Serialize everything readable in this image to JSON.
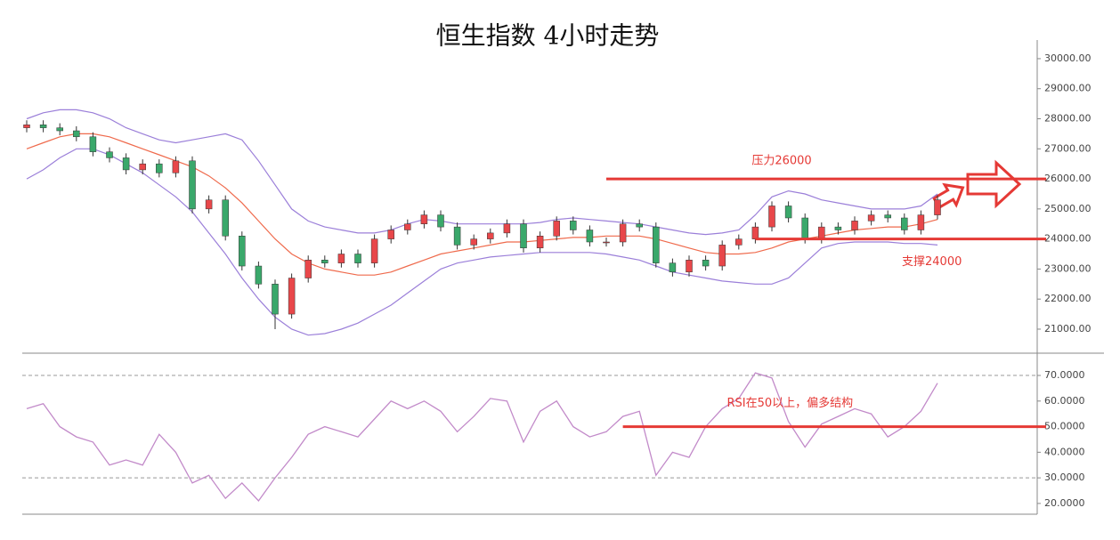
{
  "chart_data": [
    {
      "type": "candlestick",
      "title": "恒生指数 4小时走势",
      "up_color": "#e8474a",
      "down_color": "#3aa86b",
      "open": [
        27700,
        27800,
        27700,
        27600,
        27400,
        26900,
        26700,
        26300,
        26500,
        26200,
        26600,
        25000,
        25300,
        24100,
        23100,
        22500,
        21500,
        22700,
        23300,
        23200,
        23500,
        23200,
        24000,
        24300,
        24500,
        24800,
        24400,
        23800,
        24000,
        24200,
        24500,
        23700,
        24100,
        24600,
        24300,
        23900,
        23900,
        24500,
        24400,
        23200,
        22900,
        23300,
        23100,
        23800,
        24000,
        24400,
        25100,
        24700,
        24000,
        24400,
        24300,
        24600,
        24800,
        24700,
        24300,
        24800
      ],
      "high": [
        27950,
        27950,
        27850,
        27750,
        27550,
        27050,
        26850,
        26650,
        26650,
        26750,
        26750,
        25450,
        25450,
        24250,
        23250,
        22650,
        22850,
        23450,
        23450,
        23650,
        23650,
        24150,
        24450,
        24650,
        24950,
        24950,
        24550,
        24150,
        24350,
        24650,
        24650,
        24250,
        24750,
        24750,
        24450,
        24050,
        24650,
        24650,
        24550,
        23350,
        23450,
        23450,
        23950,
        24150,
        24550,
        25250,
        25250,
        24850,
        24550,
        24550,
        24750,
        24950,
        24950,
        24850,
        24950,
        25450
      ],
      "low": [
        27550,
        27550,
        27450,
        27250,
        26750,
        26550,
        26150,
        26150,
        26050,
        26050,
        24850,
        24850,
        23950,
        22950,
        22350,
        21000,
        21350,
        22550,
        23050,
        23050,
        23050,
        23050,
        23850,
        24150,
        24350,
        24250,
        23650,
        23650,
        23850,
        24050,
        23550,
        23550,
        23950,
        24150,
        23750,
        23750,
        23750,
        24250,
        23050,
        22750,
        22750,
        22950,
        22950,
        23650,
        23850,
        24250,
        24550,
        23850,
        23850,
        24150,
        24150,
        24450,
        24550,
        24150,
        24150,
        24650
      ],
      "close": [
        27800,
        27700,
        27600,
        27400,
        26900,
        26700,
        26300,
        26500,
        26200,
        26600,
        25000,
        25300,
        24100,
        23100,
        22500,
        21500,
        22700,
        23300,
        23200,
        23500,
        23200,
        24000,
        24300,
        24500,
        24800,
        24400,
        23800,
        24000,
        24200,
        24500,
        23700,
        24100,
        24600,
        24300,
        23900,
        23900,
        24500,
        24400,
        23200,
        22900,
        23300,
        23100,
        23800,
        24000,
        24400,
        25100,
        24700,
        24000,
        24400,
        24300,
        24600,
        24800,
        24700,
        24300,
        24800,
        25300
      ],
      "series": [
        {
          "color": "#9b7fd9",
          "values": [
            28000,
            28200,
            28300,
            28300,
            28200,
            28000,
            27700,
            27500,
            27300,
            27200,
            27300,
            27400,
            27500,
            27300,
            26600,
            25800,
            25000,
            24600,
            24400,
            24300,
            24200,
            24200,
            24300,
            24500,
            24650,
            24600,
            24500,
            24500,
            24500,
            24500,
            24500,
            24550,
            24650,
            24700,
            24650,
            24600,
            24550,
            24500,
            24400,
            24300,
            24200,
            24150,
            24200,
            24300,
            24800,
            25400,
            25600,
            25500,
            25300,
            25200,
            25100,
            25000,
            25000,
            25000,
            25100,
            25500
          ]
        },
        {
          "color": "#ef6a4c",
          "values": [
            27000,
            27200,
            27400,
            27500,
            27500,
            27400,
            27200,
            27000,
            26800,
            26600,
            26400,
            26100,
            25700,
            25200,
            24600,
            24000,
            23500,
            23200,
            23000,
            22900,
            22800,
            22800,
            22900,
            23100,
            23300,
            23500,
            23600,
            23700,
            23800,
            23900,
            23900,
            23950,
            24000,
            24050,
            24050,
            24100,
            24100,
            24100,
            24000,
            23850,
            23700,
            23550,
            23500,
            23500,
            23550,
            23700,
            23900,
            24000,
            24100,
            24200,
            24300,
            24350,
            24400,
            24400,
            24500,
            24650
          ]
        },
        {
          "color": "#9b7fd9",
          "values": [
            26000,
            26300,
            26700,
            27000,
            27000,
            26800,
            26500,
            26200,
            25800,
            25400,
            24900,
            24200,
            23500,
            22700,
            22000,
            21400,
            21000,
            20800,
            20850,
            21000,
            21200,
            21500,
            21800,
            22200,
            22600,
            23000,
            23200,
            23300,
            23400,
            23450,
            23500,
            23550,
            23550,
            23550,
            23550,
            23500,
            23400,
            23300,
            23100,
            22900,
            22800,
            22700,
            22600,
            22550,
            22500,
            22500,
            22700,
            23200,
            23700,
            23850,
            23900,
            23900,
            23900,
            23850,
            23850,
            23800
          ]
        }
      ],
      "ylim": [
        20200,
        30620
      ],
      "yticks": [
        {
          "value": 21000,
          "label": "21000.00"
        },
        {
          "value": 22000,
          "label": "22000.00"
        },
        {
          "value": 23000,
          "label": "23000.00"
        },
        {
          "value": 24000,
          "label": "24000.00"
        },
        {
          "value": 25000,
          "label": "25000.00"
        },
        {
          "value": 26000,
          "label": "26000.00"
        },
        {
          "value": 27000,
          "label": "27000.00"
        },
        {
          "value": 28000,
          "label": "28000.00"
        },
        {
          "value": 29000,
          "label": "29000.00"
        },
        {
          "value": 30000,
          "label": "30000.00"
        }
      ],
      "annotations": [
        {
          "text": "压力26000",
          "value": 26000,
          "start": 35,
          "color": "#e53935"
        },
        {
          "text": "支撑24000",
          "value": 24000,
          "start": 44,
          "color": "#e53935"
        }
      ]
    },
    {
      "type": "line",
      "color": "#c28ac9",
      "values": [
        57,
        59,
        50,
        46,
        44,
        35,
        37,
        35,
        47,
        40,
        28,
        31,
        22,
        28,
        21,
        30,
        38,
        47,
        50,
        48,
        46,
        53,
        60,
        57,
        60,
        56,
        48,
        54,
        61,
        60,
        44,
        56,
        60,
        50,
        46,
        48,
        54,
        56,
        31,
        40,
        38,
        50,
        57,
        61,
        71,
        69,
        52,
        42,
        51,
        54,
        57,
        55,
        46,
        50,
        56,
        67
      ],
      "ylim": [
        15.8,
        78.7
      ],
      "yticks": [
        {
          "value": 20,
          "label": "20.0000"
        },
        {
          "value": 30,
          "label": "30.0000"
        },
        {
          "value": 40,
          "label": "40.0000"
        },
        {
          "value": 50,
          "label": "50.0000"
        },
        {
          "value": 60,
          "label": "60.0000"
        },
        {
          "value": 70,
          "label": "70.0000"
        }
      ],
      "dashed_levels": [
        30,
        70
      ],
      "annotations": [
        {
          "text": "RSI在50以上，偏多结构",
          "value": 50,
          "start": 36,
          "color": "#e53935"
        }
      ]
    }
  ]
}
